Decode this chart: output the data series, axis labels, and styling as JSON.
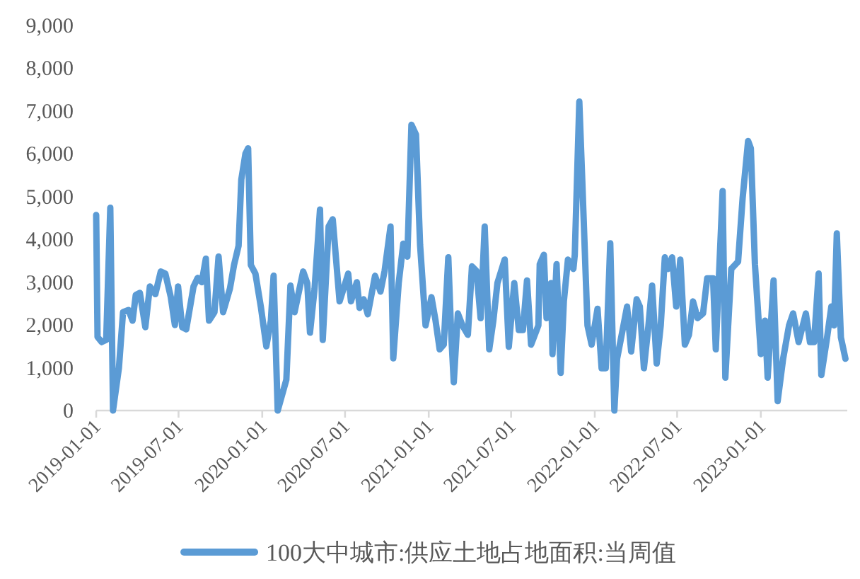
{
  "chart_data": {
    "type": "line",
    "x": [
      "2019-01-01",
      "2019-01-04",
      "2019-01-13",
      "2019-01-23",
      "2019-02-01",
      "2019-02-07",
      "2019-02-20",
      "2019-03-01",
      "2019-03-13",
      "2019-03-22",
      "2019-03-29",
      "2019-04-07",
      "2019-04-19",
      "2019-04-29",
      "2019-05-11",
      "2019-05-23",
      "2019-06-02",
      "2019-06-14",
      "2019-06-23",
      "2019-06-30",
      "2019-07-09",
      "2019-07-18",
      "2019-08-03",
      "2019-08-12",
      "2019-08-21",
      "2019-08-30",
      "2019-09-06",
      "2019-09-18",
      "2019-09-27",
      "2019-10-07",
      "2019-10-22",
      "2019-10-31",
      "2019-11-10",
      "2019-11-16",
      "2019-11-25",
      "2019-12-01",
      "2019-12-07",
      "2019-12-17",
      "2019-12-29",
      "2020-01-10",
      "2020-01-20",
      "2020-01-26",
      "2020-02-04",
      "2020-02-23",
      "2020-03-03",
      "2020-03-12",
      "2020-03-31",
      "2020-04-09",
      "2020-04-15",
      "2020-04-25",
      "2020-05-07",
      "2020-05-13",
      "2020-05-26",
      "2020-06-04",
      "2020-06-19",
      "2020-07-08",
      "2020-07-14",
      "2020-07-27",
      "2020-08-02",
      "2020-08-11",
      "2020-08-20",
      "2020-09-05",
      "2020-09-17",
      "2020-09-26",
      "2020-10-09",
      "2020-10-15",
      "2020-10-27",
      "2020-11-06",
      "2020-11-15",
      "2020-11-24",
      "2020-12-04",
      "2020-12-13",
      "2020-12-25",
      "2021-01-07",
      "2021-01-16",
      "2021-01-25",
      "2021-02-03",
      "2021-02-13",
      "2021-02-19",
      "2021-02-25",
      "2021-03-06",
      "2021-03-16",
      "2021-03-28",
      "2021-04-06",
      "2021-04-16",
      "2021-04-25",
      "2021-05-04",
      "2021-05-14",
      "2021-05-23",
      "2021-06-01",
      "2021-06-17",
      "2021-06-26",
      "2021-07-08",
      "2021-07-18",
      "2021-07-27",
      "2021-08-05",
      "2021-08-14",
      "2021-08-30",
      "2021-09-02",
      "2021-09-11",
      "2021-09-17",
      "2021-09-27",
      "2021-09-30",
      "2021-10-09",
      "2021-10-18",
      "2021-10-25",
      "2021-11-03",
      "2021-11-15",
      "2021-11-18",
      "2021-11-28",
      "2021-12-04",
      "2021-12-16",
      "2021-12-25",
      "2022-01-07",
      "2022-01-16",
      "2022-01-25",
      "2022-02-04",
      "2022-02-13",
      "2022-02-19",
      "2022-03-04",
      "2022-03-13",
      "2022-03-22",
      "2022-04-03",
      "2022-04-10",
      "2022-04-19",
      "2022-04-28",
      "2022-05-07",
      "2022-05-17",
      "2022-05-26",
      "2022-06-04",
      "2022-06-11",
      "2022-06-20",
      "2022-06-29",
      "2022-07-08",
      "2022-07-18",
      "2022-07-27",
      "2022-08-05",
      "2022-08-15",
      "2022-08-27",
      "2022-09-05",
      "2022-09-18",
      "2022-09-24",
      "2022-10-09",
      "2022-10-15",
      "2022-10-28",
      "2022-11-12",
      "2022-11-22",
      "2022-12-04",
      "2022-12-10",
      "2022-12-19",
      "2023-01-01",
      "2023-01-10",
      "2023-01-16",
      "2023-01-29",
      "2023-02-07",
      "2023-02-19",
      "2023-03-04",
      "2023-03-13",
      "2023-03-25",
      "2023-04-10",
      "2023-04-19",
      "2023-04-28",
      "2023-05-08",
      "2023-05-14",
      "2023-05-26",
      "2023-06-05",
      "2023-06-11",
      "2023-06-17",
      "2023-06-26",
      "2023-07-06"
    ],
    "series": [
      {
        "name": "100大中城市:供应土地占地面积:当周值",
        "color": "#5b9bd5",
        "values": [
          4570,
          1720,
          1600,
          1650,
          4740,
          0,
          1000,
          2300,
          2350,
          2100,
          2700,
          2750,
          1950,
          2900,
          2720,
          3250,
          3200,
          2650,
          2000,
          2900,
          1950,
          1900,
          2900,
          3100,
          3000,
          3550,
          2100,
          2300,
          3600,
          2300,
          2850,
          3400,
          3850,
          5400,
          6000,
          6130,
          3400,
          3200,
          2420,
          1500,
          2100,
          3150,
          0,
          720,
          2920,
          2300,
          3250,
          2980,
          1820,
          2840,
          4700,
          1650,
          4300,
          4470,
          2550,
          3200,
          2550,
          3000,
          2400,
          2600,
          2250,
          3150,
          2780,
          3260,
          4300,
          1220,
          2980,
          3900,
          3600,
          6680,
          6450,
          3870,
          1990,
          2650,
          2100,
          1430,
          1540,
          3580,
          1880,
          660,
          2270,
          1990,
          1770,
          3370,
          3260,
          2160,
          4300,
          1430,
          2100,
          2980,
          3530,
          1490,
          2980,
          1880,
          1880,
          3040,
          1540,
          1990,
          3420,
          3640,
          2160,
          2980,
          1320,
          3420,
          880,
          2550,
          3530,
          3310,
          3640,
          7220,
          5520,
          1990,
          1540,
          2380,
          990,
          990,
          3910,
          0,
          1210,
          1930,
          2430,
          1380,
          2600,
          2430,
          990,
          1880,
          2920,
          1100,
          1990,
          3580,
          3310,
          3580,
          2430,
          3530,
          1540,
          1770,
          2550,
          2160,
          2270,
          3090,
          3090,
          1430,
          5130,
          770,
          3310,
          3480,
          4970,
          6300,
          6130,
          3420,
          1320,
          2100,
          770,
          3040,
          220,
          1210,
          1990,
          2270,
          1600,
          2270,
          1600,
          1600,
          3200,
          830,
          1660,
          2430,
          1990,
          4140,
          1710,
          1210
        ]
      }
    ],
    "xlim": [
      "2019-01-01",
      "2023-07-10"
    ],
    "xticks": [
      "2019-01-01",
      "2019-07-01",
      "2020-01-01",
      "2020-07-01",
      "2021-01-01",
      "2021-07-01",
      "2022-01-01",
      "2022-07-01",
      "2023-01-01"
    ],
    "ylim": [
      0,
      9000
    ],
    "yticks": [
      0,
      {
        "value": 1000,
        "label": "1,000"
      },
      {
        "value": 2000,
        "label": "2,000"
      },
      {
        "value": 3000,
        "label": "3,000"
      },
      {
        "value": 4000,
        "label": "4,000"
      },
      {
        "value": 5000,
        "label": "5,000"
      },
      {
        "value": 6000,
        "label": "6,000"
      },
      {
        "value": 7000,
        "label": "7,000"
      },
      {
        "value": 8000,
        "label": "8,000"
      },
      {
        "value": 9000,
        "label": "9,000"
      }
    ],
    "grid": false,
    "legend": "bottom",
    "marker": "none",
    "line_style": "solid"
  }
}
